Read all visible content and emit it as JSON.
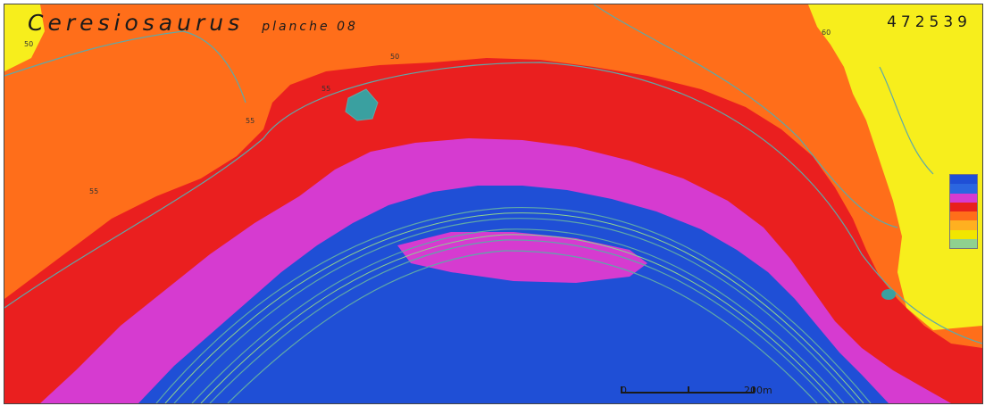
{
  "map": {
    "title": "Ceresiosaurus",
    "subtitle": "planche 08",
    "sheet_number": "472539",
    "scale": {
      "start_label": "0",
      "end_label": "200m"
    },
    "contour_labels": [
      "50",
      "50",
      "55",
      "55",
      "60",
      "55"
    ],
    "legend_colors": [
      "#1f4fd6",
      "#2b66e0",
      "#d63bd0",
      "#e8201c",
      "#ff6e1a",
      "#ffb020",
      "#f2e600",
      "#8fd18f"
    ],
    "colors": {
      "background_orange": "#ff6e1a",
      "red_zone": "#ea1f1f",
      "magenta_zone": "#d63bd0",
      "blue_channel": "#1f4fd6",
      "yellow_zone": "#f7ee1c",
      "contour_line": "#5fa8a8"
    }
  }
}
